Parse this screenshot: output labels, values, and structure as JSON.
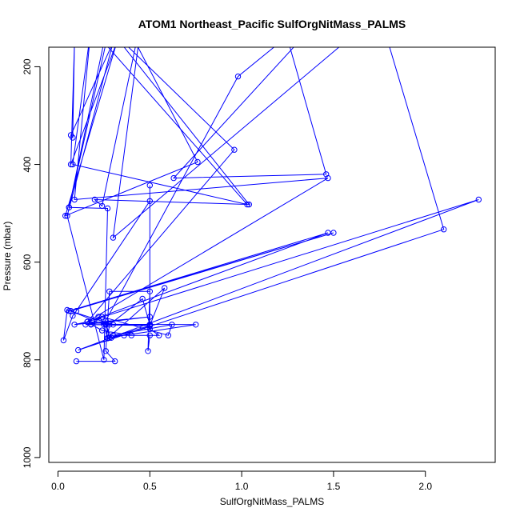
{
  "chart_data": {
    "type": "line",
    "title": "ATOM1 Northeast_Pacific SulfOrgNitMass_PALMS",
    "xlabel": "SulfOrgNitMass_PALMS",
    "ylabel": "Pressure (mbar)",
    "xlim": [
      -0.05,
      2.38
    ],
    "ylim": [
      1010,
      160
    ],
    "y_reversed": true,
    "x_ticks": [
      "0.0",
      "0.5",
      "1.0",
      "1.5",
      "2.0"
    ],
    "x_tick_values": [
      0,
      0.5,
      1.0,
      1.5,
      2.0
    ],
    "y_ticks": [
      "200",
      "400",
      "600",
      "800",
      "1000"
    ],
    "y_tick_values": [
      200,
      400,
      600,
      800,
      1000
    ],
    "grid": false,
    "series": [
      {
        "color": "#0000ff",
        "marker": "open-circle",
        "points": [
          [
            0.1,
            803
          ],
          [
            0.31,
            803
          ],
          [
            0.26,
            782
          ],
          [
            0.28,
            660
          ],
          [
            0.5,
            660
          ],
          [
            0.49,
            782
          ],
          [
            0.5,
            750
          ],
          [
            0.4,
            750
          ],
          [
            0.24,
            740
          ],
          [
            0.18,
            727
          ],
          [
            0.24,
            712
          ],
          [
            0.6,
            750
          ],
          [
            0.62,
            728
          ],
          [
            0.3,
            750
          ],
          [
            0.36,
            750
          ],
          [
            0.55,
            750
          ],
          [
            0.5,
            737
          ],
          [
            0.5,
            728
          ],
          [
            0.46,
            675
          ],
          [
            0.28,
            728
          ],
          [
            0.27,
            755
          ],
          [
            0.75,
            728
          ],
          [
            0.26,
            727
          ],
          [
            0.5,
            728
          ],
          [
            0.15,
            728
          ],
          [
            0.5,
            712
          ],
          [
            0.09,
            728
          ],
          [
            0.16,
            722
          ],
          [
            0.3,
            728
          ],
          [
            0.05,
            698
          ],
          [
            0.03,
            760
          ],
          [
            0.08,
            710
          ],
          [
            0.1,
            700
          ],
          [
            0.5,
            475
          ],
          [
            0.5,
            443
          ],
          [
            0.5,
            730
          ],
          [
            0.28,
            755
          ],
          [
            0.26,
            728
          ],
          [
            0.29,
            755
          ],
          [
            0.26,
            728
          ],
          [
            0.22,
            712
          ],
          [
            0.18,
            728
          ],
          [
            0.5,
            730
          ],
          [
            0.58,
            653
          ],
          [
            0.27,
            756
          ],
          [
            0.25,
            728
          ],
          [
            0.07,
            700
          ],
          [
            1.5,
            540
          ],
          [
            0.06,
            700
          ],
          [
            1.47,
            540
          ],
          [
            0.16,
            722
          ],
          [
            2.29,
            472
          ],
          [
            0.11,
            780
          ],
          [
            2.1,
            533
          ],
          [
            1.75,
            90
          ],
          [
            0.3,
            550
          ],
          [
            0.46,
            90
          ],
          [
            0.24,
            485
          ],
          [
            0.2,
            472
          ],
          [
            1.04,
            482
          ],
          [
            0.28,
            122
          ],
          [
            0.96,
            370
          ],
          [
            0.16,
            722
          ],
          [
            1.47,
            428
          ],
          [
            0.09,
            472
          ],
          [
            0.18,
            120
          ],
          [
            0.08,
            400
          ],
          [
            1.03,
            482
          ],
          [
            0.25,
            150
          ],
          [
            0.06,
            488
          ],
          [
            0.28,
            120
          ],
          [
            0.06,
            488
          ],
          [
            0.27,
            490
          ],
          [
            0.25,
            800
          ],
          [
            0.05,
            505
          ],
          [
            0.3,
            150
          ],
          [
            0.07,
            340
          ],
          [
            0.08,
            345
          ],
          [
            0.09,
            150
          ],
          [
            0.07,
            400
          ],
          [
            0.32,
            150
          ],
          [
            0.04,
            505
          ],
          [
            0.76,
            395
          ],
          [
            0.36,
            105
          ],
          [
            1.24,
            130
          ],
          [
            1.46,
            420
          ],
          [
            0.63,
            428
          ],
          [
            1.6,
            30
          ],
          [
            0.98,
            220
          ],
          [
            0.26,
            720
          ]
        ]
      }
    ]
  }
}
